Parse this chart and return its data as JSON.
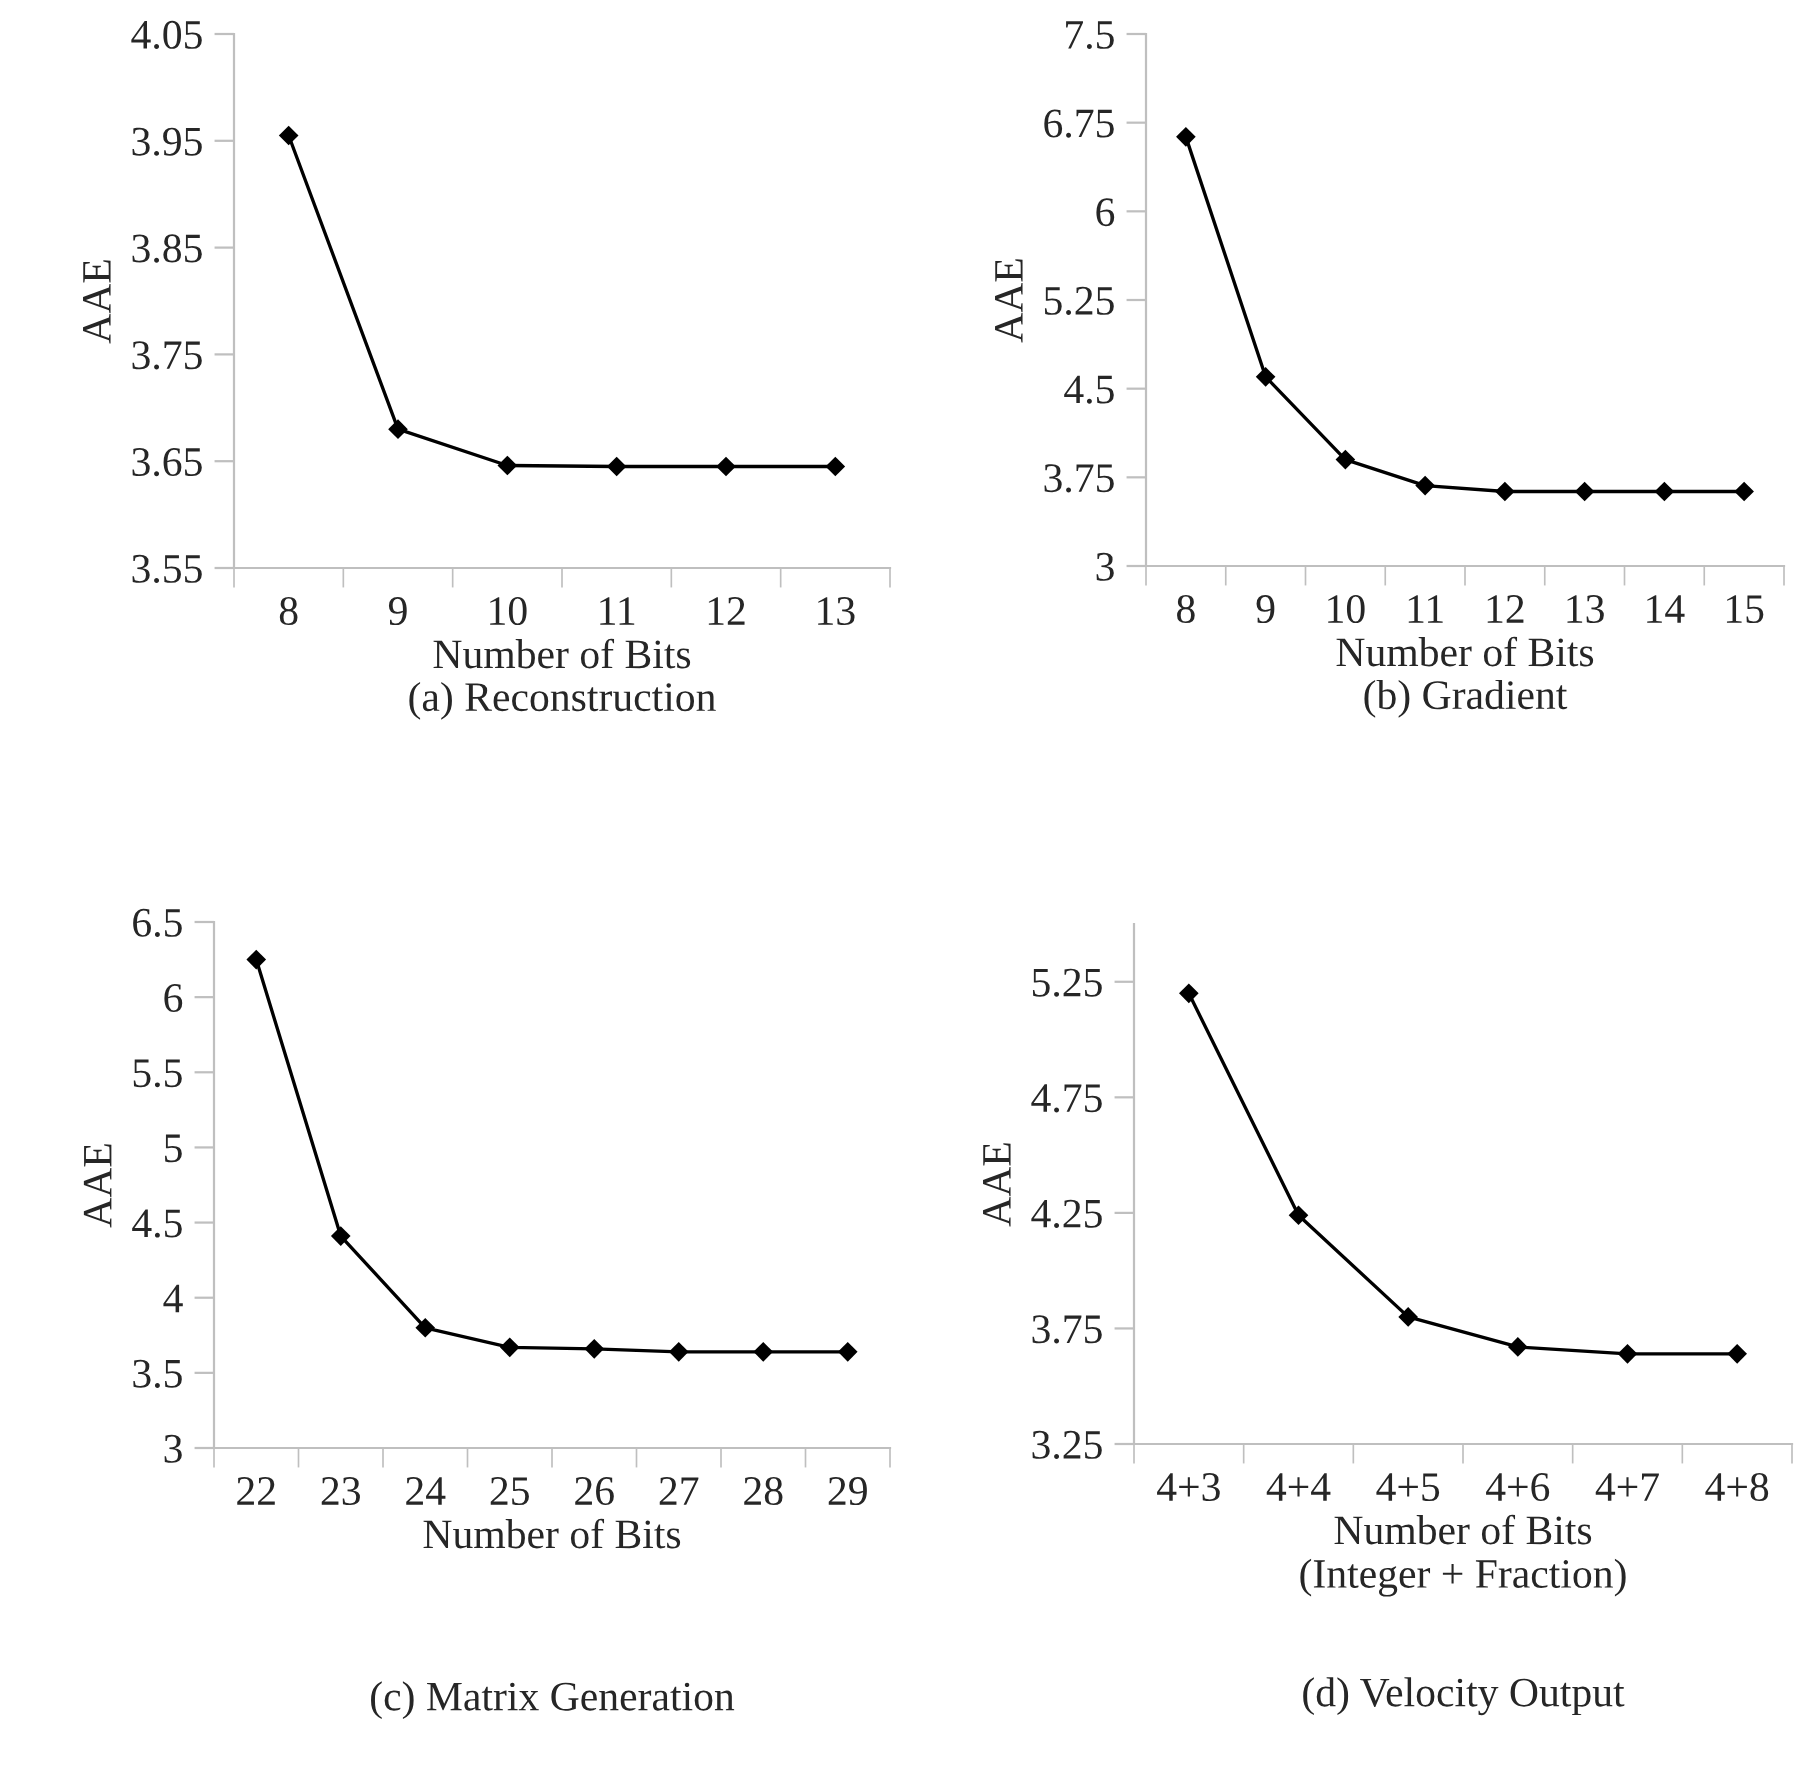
{
  "chart_data": [
    {
      "type": "line",
      "xlabel": "Number of Bits",
      "ylabel": "AAE",
      "annotations": [
        "(a) Reconstruction"
      ],
      "categories": [
        "8",
        "9",
        "10",
        "11",
        "12",
        "13"
      ],
      "series": [
        {
          "color": "#000000",
          "values": [
            3.955,
            3.68,
            3.646,
            3.645,
            3.645,
            3.645
          ]
        }
      ],
      "ylim": [
        3.55,
        4.05
      ],
      "yticks": [
        {
          "value": 3.55,
          "label": "3.55"
        },
        {
          "value": 3.65,
          "label": "3.65"
        },
        {
          "value": 3.75,
          "label": "3.75"
        },
        {
          "value": 3.85,
          "label": "3.85"
        },
        {
          "value": 3.95,
          "label": "3.95"
        },
        {
          "value": 4.05,
          "label": "4.05"
        }
      ],
      "marker": "diamond",
      "line_style": "solid",
      "grid": false
    },
    {
      "type": "line",
      "xlabel": "Number of Bits",
      "ylabel": "AAE",
      "annotations": [
        "(b) Gradient"
      ],
      "categories": [
        "8",
        "9",
        "10",
        "11",
        "12",
        "13",
        "14",
        "15"
      ],
      "series": [
        {
          "color": "#000000",
          "values": [
            6.63,
            4.6,
            3.9,
            3.68,
            3.63,
            3.63,
            3.63,
            3.63
          ]
        }
      ],
      "ylim": [
        3,
        7.5
      ],
      "yticks": [
        3,
        3.75,
        4.5,
        5.25,
        6,
        6.75,
        7.5
      ],
      "marker": "diamond",
      "line_style": "solid",
      "grid": false
    },
    {
      "type": "line",
      "xlabel": "Number of Bits",
      "ylabel": "AAE",
      "annotations": [
        "(c) Matrix Generation"
      ],
      "categories": [
        "22",
        "23",
        "24",
        "25",
        "26",
        "27",
        "28",
        "29"
      ],
      "series": [
        {
          "color": "#000000",
          "values": [
            6.25,
            4.41,
            3.8,
            3.67,
            3.66,
            3.64,
            3.64,
            3.64
          ]
        }
      ],
      "ylim": [
        3,
        6.5
      ],
      "yticks": [
        3,
        3.5,
        4,
        4.5,
        5,
        5.5,
        6,
        6.5
      ],
      "marker": "diamond",
      "line_style": "solid",
      "grid": false
    },
    {
      "type": "line",
      "xlabel": "Number of Bits\n(Integer + Fraction)",
      "ylabel": "AAE",
      "annotations": [
        "(d) Velocity Output"
      ],
      "categories": [
        "4+3",
        "4+4",
        "4+5",
        "4+6",
        "4+7",
        "4+8"
      ],
      "series": [
        {
          "color": "#000000",
          "values": [
            5.2,
            4.24,
            3.8,
            3.67,
            3.64,
            3.64
          ]
        }
      ],
      "ylim": [
        3.25,
        5.5
      ],
      "yticks": [
        3.25,
        3.75,
        4.25,
        4.75,
        5.25
      ],
      "marker": "diamond",
      "line_style": "solid",
      "grid": false
    }
  ]
}
